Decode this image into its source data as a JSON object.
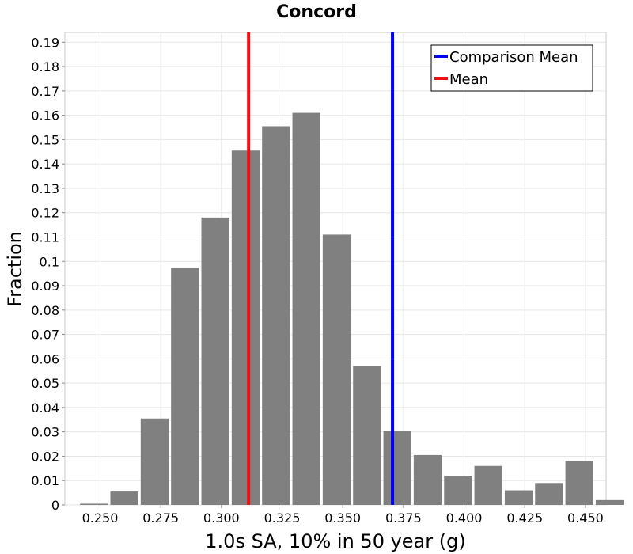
{
  "chart_data": {
    "type": "bar",
    "title": "Concord",
    "xlabel": "1.0s SA, 10% in 50 year (g)",
    "ylabel": "Fraction",
    "xlim": [
      0.2355,
      0.4585
    ],
    "ylim": [
      0,
      0.194
    ],
    "x_ticks": [
      0.25,
      0.275,
      0.3,
      0.325,
      0.35,
      0.375,
      0.4,
      0.425,
      0.45
    ],
    "x_tick_labels": [
      "0.250",
      "0.275",
      "0.300",
      "0.325",
      "0.350",
      "0.375",
      "0.400",
      "0.425",
      "0.450"
    ],
    "y_ticks": [
      0,
      0.01,
      0.02,
      0.03,
      0.04,
      0.05,
      0.06,
      0.07,
      0.08,
      0.09,
      0.1,
      0.11,
      0.12,
      0.13,
      0.14,
      0.15,
      0.16,
      0.17,
      0.18,
      0.19
    ],
    "y_tick_labels": [
      "0",
      "0.01",
      "0.02",
      "0.03",
      "0.04",
      "0.05",
      "0.06",
      "0.07",
      "0.08",
      "0.09",
      "0.1",
      "0.11",
      "0.12",
      "0.13",
      "0.14",
      "0.15",
      "0.16",
      "0.17",
      "0.18",
      "0.19"
    ],
    "bin_width": 0.0125,
    "bins": [
      {
        "x": 0.2475,
        "value": 0.0005
      },
      {
        "x": 0.26,
        "value": 0.0055
      },
      {
        "x": 0.2725,
        "value": 0.0355
      },
      {
        "x": 0.285,
        "value": 0.0975
      },
      {
        "x": 0.2975,
        "value": 0.118
      },
      {
        "x": 0.31,
        "value": 0.1455
      },
      {
        "x": 0.3225,
        "value": 0.1555
      },
      {
        "x": 0.335,
        "value": 0.161
      },
      {
        "x": 0.3475,
        "value": 0.111
      },
      {
        "x": 0.36,
        "value": 0.057
      },
      {
        "x": 0.3725,
        "value": 0.0305
      },
      {
        "x": 0.385,
        "value": 0.0205
      },
      {
        "x": 0.3975,
        "value": 0.012
      },
      {
        "x": 0.41,
        "value": 0.016
      },
      {
        "x": 0.4225,
        "value": 0.006
      },
      {
        "x": 0.435,
        "value": 0.009
      },
      {
        "x": 0.4475,
        "value": 0.018
      },
      {
        "x": 0.46,
        "value": 0.002
      }
    ],
    "vlines": [
      {
        "name": "Comparison Mean",
        "x": 0.3705,
        "color": "#0000ee"
      },
      {
        "name": "Mean",
        "x": 0.3112,
        "color": "#ee1111"
      }
    ],
    "bar_color": "#808080",
    "grid": true,
    "legend_position": "top-right"
  }
}
